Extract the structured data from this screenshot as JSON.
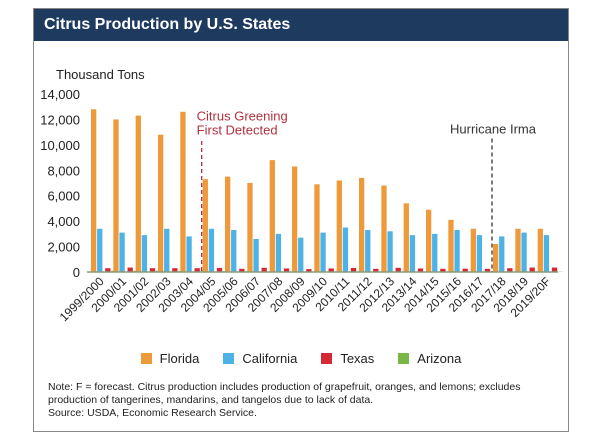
{
  "chart_data": {
    "type": "bar",
    "title": "Citrus Production by U.S. States",
    "ylabel": "Thousand Tons",
    "ylim": [
      0,
      14000
    ],
    "yticks": [
      "0",
      "2,000",
      "4,000",
      "6,000",
      "8,000",
      "10,000",
      "12,000",
      "14,000"
    ],
    "categories": [
      "1999/2000",
      "2000/01",
      "2001/02",
      "2002/03",
      "2003/04",
      "2004/05",
      "2005/06",
      "2006/07",
      "2007/08",
      "2008/09",
      "2009/10",
      "2010/11",
      "2011/12",
      "2012/13",
      "2013/14",
      "2014/15",
      "2015/16",
      "2016/17",
      "2017/18",
      "2018/19",
      "2019/20F"
    ],
    "series": [
      {
        "name": "Florida",
        "color": "#ef9a3a",
        "values": [
          12800,
          12000,
          12300,
          10800,
          12600,
          7300,
          7500,
          7000,
          8800,
          8300,
          6900,
          7200,
          7400,
          6800,
          5400,
          4900,
          4100,
          3400,
          2200,
          3400,
          3400
        ]
      },
      {
        "name": "California",
        "color": "#4db3e6",
        "values": [
          3400,
          3100,
          2900,
          3400,
          2800,
          3400,
          3300,
          2600,
          3000,
          2700,
          3100,
          3500,
          3300,
          3200,
          2900,
          3000,
          3300,
          2900,
          2800,
          3100,
          2900
        ]
      },
      {
        "name": "Texas",
        "color": "#d42a35",
        "values": [
          300,
          350,
          300,
          300,
          300,
          320,
          250,
          330,
          280,
          230,
          280,
          320,
          250,
          330,
          280,
          250,
          260,
          250,
          300,
          350,
          350
        ]
      },
      {
        "name": "Arizona",
        "color": "#7bb648",
        "values": [
          100,
          100,
          100,
          80,
          70,
          60,
          50,
          50,
          40,
          40,
          30,
          30,
          30,
          20,
          20,
          20,
          20,
          20,
          20,
          20,
          20
        ]
      }
    ],
    "annotations": [
      {
        "text": "Citrus Greening First Detected",
        "category": "2004/05",
        "color": "#b03040"
      },
      {
        "text": "Hurricane Irma",
        "category": "2017/18",
        "color": "#333333"
      }
    ],
    "legend_position": "bottom",
    "grid": false
  },
  "note": "Note: F = forecast. Citrus production includes production of grapefruit, oranges, and lemons; excludes production of tangerines, mandarins, and tangelos due to lack of data.",
  "source": "Source: USDA, Economic Research Service."
}
